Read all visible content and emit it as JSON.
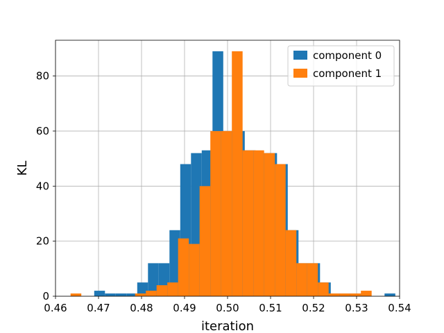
{
  "chart_data": {
    "type": "histogram",
    "title": "",
    "xlabel": "iteration",
    "ylabel": "KL",
    "xlim": [
      0.46,
      0.54
    ],
    "ylim": [
      0,
      93
    ],
    "xticks": [
      0.46,
      0.47,
      0.48,
      0.49,
      0.5,
      0.51,
      0.52,
      0.53,
      0.54
    ],
    "xtick_labels": [
      "0.46",
      "0.47",
      "0.48",
      "0.49",
      "0.50",
      "0.51",
      "0.52",
      "0.53",
      "0.54"
    ],
    "yticks": [
      0,
      20,
      40,
      60,
      80
    ],
    "ytick_labels": [
      "0",
      "20",
      "40",
      "60",
      "80"
    ],
    "grid": true,
    "legend_position": "top-right",
    "series": [
      {
        "name": "component 0",
        "color": "#1f77b4",
        "bin_start": 0.469,
        "bin_width": 0.0025,
        "counts": [
          2,
          1,
          1,
          1,
          5,
          12,
          12,
          24,
          48,
          52,
          53,
          89,
          60,
          60,
          53,
          52,
          52,
          48,
          24,
          12,
          12,
          5,
          1,
          1,
          1,
          0,
          0,
          1
        ]
      },
      {
        "name": "component 1",
        "color": "#ff7f0e",
        "bin_start": 0.4635,
        "bin_width": 0.0025,
        "counts": [
          1,
          0,
          0,
          0,
          0,
          0,
          1,
          2,
          4,
          5,
          21,
          19,
          40,
          60,
          60,
          89,
          53,
          53,
          52,
          48,
          24,
          12,
          12,
          5,
          1,
          1,
          1,
          2
        ]
      }
    ]
  }
}
